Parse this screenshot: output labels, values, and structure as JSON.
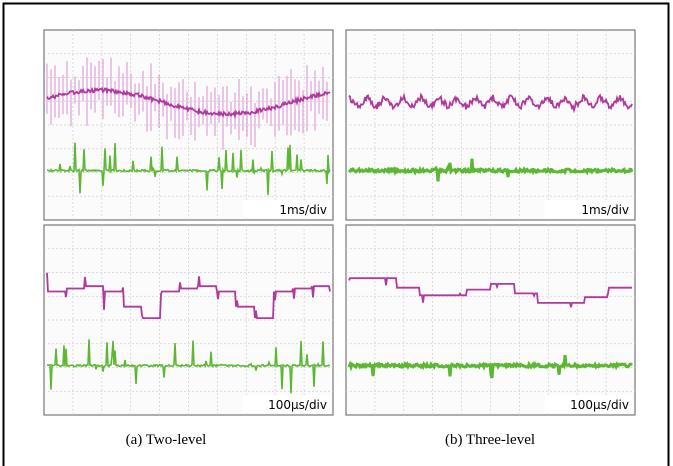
{
  "panels": [
    {
      "time_scale": "1ms/div"
    },
    {
      "time_scale": "1ms/div"
    },
    {
      "time_scale": "100µs/div"
    },
    {
      "time_scale": "100µs/div"
    }
  ],
  "captions": [
    "(a) Two-level",
    "(b) Three-level"
  ]
}
